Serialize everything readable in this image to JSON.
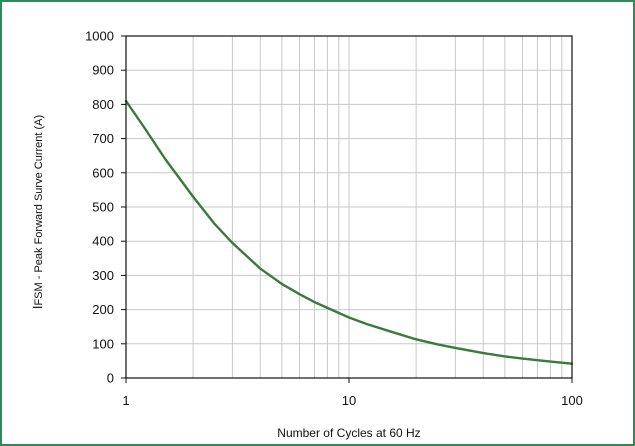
{
  "chart_data": {
    "type": "line",
    "title": "",
    "xlabel": "Number of Cycles at 60 Hz",
    "ylabel_prefix": "I",
    "ylabel_rest": "FSM - Peak Forward Surve Current (A)",
    "x_scale": "log",
    "xlim": [
      1,
      100
    ],
    "ylim": [
      0,
      1000
    ],
    "x_ticks": [
      1,
      10,
      100
    ],
    "y_ticks": [
      0,
      100,
      200,
      300,
      400,
      500,
      600,
      700,
      800,
      900,
      1000
    ],
    "grid": true,
    "legend": "none",
    "series": [
      {
        "color": "#3a7a3a",
        "x": [
          1,
          1.2,
          1.5,
          2,
          2.5,
          3,
          4,
          5,
          6,
          7,
          8,
          10,
          12,
          15,
          20,
          25,
          30,
          40,
          50,
          60,
          70,
          80,
          100
        ],
        "y": [
          810,
          735,
          640,
          530,
          450,
          395,
          320,
          275,
          245,
          222,
          205,
          177,
          158,
          138,
          113,
          98,
          88,
          73,
          63,
          57,
          52,
          48,
          42
        ]
      }
    ]
  },
  "colors": {
    "frame": "#2e8a57",
    "grid": "#c8c8c8",
    "axis": "#111111",
    "line": "#3a7a3a"
  }
}
